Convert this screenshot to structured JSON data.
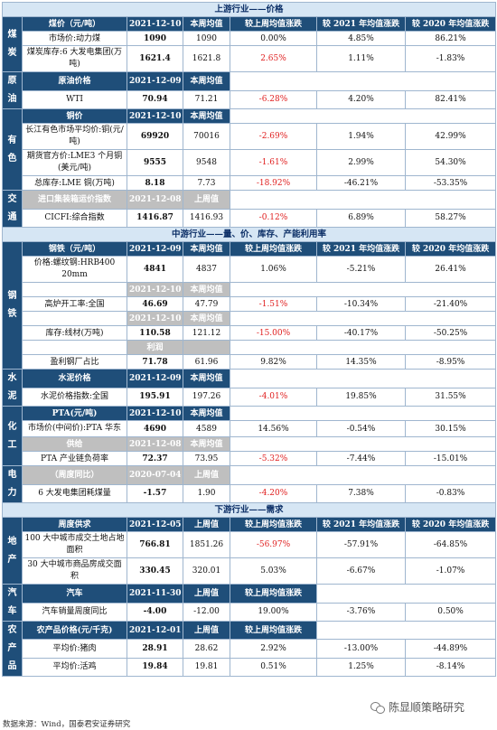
{
  "sections": {
    "upstream": "上游行业——价格",
    "midstream": "中游行业——量、价、库存、产能利用率",
    "downstream": "下游行业——需求"
  },
  "cols": {
    "week_avg": "本周均值",
    "last_week": "上周值",
    "vs_last_week": "较上周均值涨跌",
    "vs_2021": "较 2021 年均值涨跌",
    "vs_2020": "较 2020 年均值涨跌"
  },
  "coal": {
    "cat": "煤炭",
    "header": "煤价（元/吨）",
    "date": "2021-12-10",
    "rows": [
      {
        "name": "市场价:动力煤",
        "v": "1090",
        "p": "1090",
        "c1": "0.00%",
        "c2": "4.85%",
        "c3": "86.21%"
      },
      {
        "name": "煤炭库存:6 大发电集团(万吨)",
        "v": "1621.4",
        "p": "1621.8",
        "c1": "2.65%",
        "c2": "1.11%",
        "c3": "-1.83%"
      }
    ]
  },
  "crude": {
    "cat": "原油",
    "header": "原油价格",
    "date": "2021-12-09",
    "row": {
      "name": "WTI",
      "v": "70.94",
      "p": "71.21",
      "c1": "-6.28%",
      "c2": "4.20%",
      "c3": "82.41%"
    }
  },
  "nonferrous": {
    "cat": "有色",
    "header": "铜价",
    "date": "2021-12-10",
    "rows": [
      {
        "name": "长江有色市场平均价:铜(元/吨)",
        "v": "69920",
        "p": "70016",
        "c1": "-2.69%",
        "c2": "1.94%",
        "c3": "42.99%"
      },
      {
        "name": "期货官方价:LME3 个月铜(美元/吨)",
        "v": "9555",
        "p": "9548",
        "c1": "-1.61%",
        "c2": "2.99%",
        "c3": "54.30%"
      },
      {
        "name": "总库存:LME 铜(万吨)",
        "v": "8.18",
        "p": "7.73",
        "c1": "-18.92%",
        "c2": "-46.21%",
        "c3": "-53.35%"
      }
    ]
  },
  "transport": {
    "cat": "交通",
    "header": "进口集装箱运价指数",
    "date": "2021-12-08",
    "prev_label": "上周值",
    "row": {
      "name": "CICFI:综合指数",
      "v": "1416.87",
      "p": "1416.93",
      "c1": "-0.12%",
      "c2": "6.89%",
      "c3": "58.27%"
    }
  },
  "steel": {
    "cat": "钢铁",
    "header": "钢铁（元/吨）",
    "date": "2021-12-09",
    "date2": "2021-12-10",
    "date3": "2021-12-10",
    "profit_header": "利润",
    "rows": [
      {
        "name": "价格:螺纹钢:HRB400 20mm",
        "v": "4841",
        "p": "4837",
        "c1": "1.06%",
        "c2": "-5.21%",
        "c3": "26.41%"
      },
      {
        "name": "高炉开工率:全国",
        "v": "46.69",
        "p": "47.79",
        "c1": "-1.51%",
        "c2": "-10.34%",
        "c3": "-21.40%"
      },
      {
        "name": "库存:线材(万吨)",
        "v": "110.58",
        "p": "121.12",
        "c1": "-15.00%",
        "c2": "-40.17%",
        "c3": "-50.25%"
      },
      {
        "name": "盈利钢厂占比",
        "v": "71.78",
        "p": "61.96",
        "c1": "9.82%",
        "c2": "14.35%",
        "c3": "-8.95%"
      }
    ]
  },
  "cement": {
    "cat": "水泥",
    "header": "水泥价格",
    "date": "2021-12-09",
    "row": {
      "name": "水泥价格指数:全国",
      "v": "195.91",
      "p": "197.26",
      "c1": "-4.01%",
      "c2": "19.85%",
      "c3": "31.55%"
    }
  },
  "chemical": {
    "cat": "化工",
    "header": "PTA(元/吨)",
    "date": "2021-12-10",
    "supply_header": "供给",
    "date2": "2021-12-08",
    "rows": [
      {
        "name": "市场价(中间价):PTA 华东",
        "v": "4690",
        "p": "4589",
        "c1": "14.56%",
        "c2": "-0.54%",
        "c3": "30.15%"
      },
      {
        "name": "PTA 产业链负荷率",
        "v": "72.37",
        "p": "73.95",
        "c1": "-5.32%",
        "c2": "-7.44%",
        "c3": "-15.01%"
      }
    ]
  },
  "power": {
    "cat": "电力",
    "header": "（周度同比）",
    "date": "2020-07-04",
    "prev_label": "上周值",
    "row": {
      "name": "6 大发电集团耗煤量",
      "v": "-1.57",
      "p": "1.90",
      "c1": "-4.20%",
      "c2": "7.38%",
      "c3": "-0.83%"
    }
  },
  "realestate": {
    "cat": "地产",
    "header": "周度供求",
    "date": "2021-12-05",
    "rows": [
      {
        "name": "100 大中城市成交土地占地面积",
        "v": "766.81",
        "p": "1851.26",
        "c1": "-56.97%",
        "c2": "-57.91%",
        "c3": "-64.85%"
      },
      {
        "name": "30 大中城市商品房成交面积",
        "v": "330.45",
        "p": "320.01",
        "c1": "5.03%",
        "c2": "-6.67%",
        "c3": "-1.07%"
      }
    ]
  },
  "auto": {
    "cat": "汽车",
    "header": "汽车",
    "date": "2021-11-30",
    "row": {
      "name": "汽车销量周度同比",
      "v": "-4.00",
      "p": "-12.00",
      "c1": "19.00%",
      "c2": "-3.76%",
      "c3": "0.50%"
    }
  },
  "agri": {
    "cat": "农产品",
    "header": "农产品价格(元/千克)",
    "date": "2021-12-01",
    "rows": [
      {
        "name": "平均价:猪肉",
        "v": "28.91",
        "p": "28.62",
        "c1": "2.92%",
        "c2": "-13.00%",
        "c3": "-44.89%"
      },
      {
        "name": "平均价:活鸡",
        "v": "19.84",
        "p": "19.81",
        "c1": "0.51%",
        "c2": "1.25%",
        "c3": "-8.14%"
      }
    ]
  },
  "source": "数据来源：Wind，国泰君安证券研究",
  "watermark": "陈显顺策略研究",
  "colors": {
    "header_bg": "#1f4e79",
    "grey_header": "#bfbfbf",
    "section_bg": "#d6e6f4",
    "negative": "#e02020"
  }
}
